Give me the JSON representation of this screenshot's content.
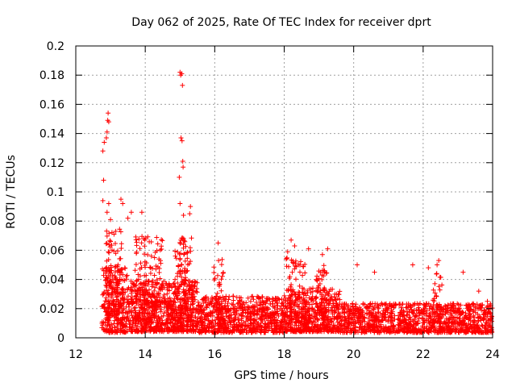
{
  "chart_data": {
    "type": "scatter",
    "title": "Day 062 of 2025, Rate Of TEC Index for receiver dprt",
    "xlabel": "GPS time / hours",
    "ylabel": "ROTI / TECUs",
    "xlim": [
      12,
      24
    ],
    "ylim": [
      0,
      0.2
    ],
    "xticks": [
      12,
      14,
      16,
      18,
      20,
      22,
      24
    ],
    "yticks": [
      0,
      0.02,
      0.04,
      0.06,
      0.08,
      0.1,
      0.12,
      0.14,
      0.16,
      0.18,
      0.2
    ],
    "xtick_labels": [
      "12",
      "14",
      "16",
      "18",
      "20",
      "22",
      "24"
    ],
    "ytick_labels": [
      "0",
      "0.02",
      "0.04",
      "0.06",
      "0.08",
      "0.1",
      "0.12",
      "0.14",
      "0.16",
      "0.18",
      "0.2"
    ],
    "grid": true,
    "marker": "+",
    "color": "#ff0000",
    "series": [
      {
        "name": "ROTI",
        "dense_band": [
          {
            "x_start": 12.75,
            "x_end": 13.5,
            "y_base": 0.012,
            "y_spread": 0.045,
            "density": 260
          },
          {
            "x_start": 13.5,
            "x_end": 15.5,
            "y_base": 0.014,
            "y_spread": 0.035,
            "density": 700
          },
          {
            "x_start": 15.5,
            "x_end": 18.0,
            "y_base": 0.012,
            "y_spread": 0.025,
            "density": 700
          },
          {
            "x_start": 18.0,
            "x_end": 19.6,
            "y_base": 0.014,
            "y_spread": 0.03,
            "density": 520
          },
          {
            "x_start": 19.6,
            "x_end": 24.0,
            "y_base": 0.012,
            "y_spread": 0.02,
            "density": 1100
          }
        ],
        "peaks": [
          {
            "x": 12.8,
            "y": 0.108
          },
          {
            "x": 12.78,
            "y": 0.128
          },
          {
            "x": 12.82,
            "y": 0.134
          },
          {
            "x": 12.88,
            "y": 0.137
          },
          {
            "x": 12.9,
            "y": 0.141
          },
          {
            "x": 12.92,
            "y": 0.149
          },
          {
            "x": 12.93,
            "y": 0.154
          },
          {
            "x": 12.95,
            "y": 0.148
          },
          {
            "x": 12.78,
            "y": 0.094
          },
          {
            "x": 12.9,
            "y": 0.086
          },
          {
            "x": 12.95,
            "y": 0.092
          },
          {
            "x": 13.0,
            "y": 0.081
          },
          {
            "x": 13.3,
            "y": 0.095
          },
          {
            "x": 13.35,
            "y": 0.092
          },
          {
            "x": 13.6,
            "y": 0.086
          },
          {
            "x": 13.9,
            "y": 0.086
          },
          {
            "x": 13.5,
            "y": 0.082
          },
          {
            "x": 15.0,
            "y": 0.182
          },
          {
            "x": 15.02,
            "y": 0.18
          },
          {
            "x": 15.05,
            "y": 0.181
          },
          {
            "x": 15.07,
            "y": 0.173
          },
          {
            "x": 15.03,
            "y": 0.137
          },
          {
            "x": 15.06,
            "y": 0.135
          },
          {
            "x": 15.08,
            "y": 0.121
          },
          {
            "x": 15.09,
            "y": 0.117
          },
          {
            "x": 14.98,
            "y": 0.11
          },
          {
            "x": 15.0,
            "y": 0.092
          },
          {
            "x": 15.1,
            "y": 0.084
          },
          {
            "x": 15.3,
            "y": 0.09
          },
          {
            "x": 15.28,
            "y": 0.085
          },
          {
            "x": 16.1,
            "y": 0.065
          },
          {
            "x": 18.2,
            "y": 0.067
          },
          {
            "x": 18.3,
            "y": 0.063
          },
          {
            "x": 18.1,
            "y": 0.059
          },
          {
            "x": 18.7,
            "y": 0.061
          },
          {
            "x": 19.25,
            "y": 0.061
          },
          {
            "x": 19.1,
            "y": 0.057
          },
          {
            "x": 20.1,
            "y": 0.05
          },
          {
            "x": 20.6,
            "y": 0.045
          },
          {
            "x": 21.7,
            "y": 0.05
          },
          {
            "x": 22.15,
            "y": 0.048
          },
          {
            "x": 22.45,
            "y": 0.053
          },
          {
            "x": 22.4,
            "y": 0.05
          },
          {
            "x": 23.15,
            "y": 0.045
          },
          {
            "x": 23.6,
            "y": 0.032
          },
          {
            "x": 23.85,
            "y": 0.025
          }
        ],
        "bursts": [
          {
            "x_center": 13.1,
            "x_width": 0.5,
            "y_top": 0.075,
            "count": 120
          },
          {
            "x_center": 14.1,
            "x_width": 0.8,
            "y_top": 0.07,
            "count": 160
          },
          {
            "x_center": 15.1,
            "x_width": 0.5,
            "y_top": 0.07,
            "count": 120
          },
          {
            "x_center": 16.1,
            "x_width": 0.3,
            "y_top": 0.055,
            "count": 40
          },
          {
            "x_center": 18.3,
            "x_width": 0.6,
            "y_top": 0.055,
            "count": 80
          },
          {
            "x_center": 19.1,
            "x_width": 0.4,
            "y_top": 0.05,
            "count": 50
          },
          {
            "x_center": 22.4,
            "x_width": 0.3,
            "y_top": 0.045,
            "count": 30
          }
        ]
      }
    ]
  }
}
